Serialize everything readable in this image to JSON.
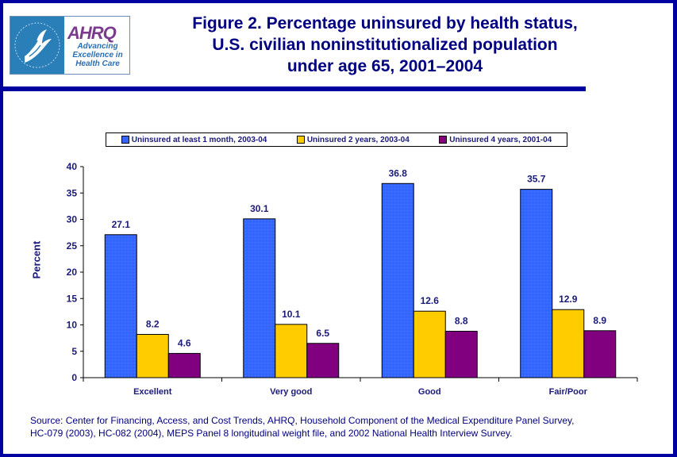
{
  "header": {
    "logo": {
      "org_name": "AHRQ",
      "tagline": [
        "Advancing",
        "Excellence in",
        "Health Care"
      ],
      "seal_icon": "hhs-eagle-seal-icon"
    },
    "title_lines": [
      "Figure 2. Percentage uninsured by health status,",
      "U.S. civilian noninstitutionalized population",
      "under age 65, 2001–2004"
    ]
  },
  "colors": {
    "border": "#0000A0",
    "text": "#000080",
    "series_1": "#3366FF",
    "series_2": "#FFCC00",
    "series_3": "#800080"
  },
  "chart_data": {
    "type": "bar",
    "title": "Figure 2. Percentage uninsured by health status, U.S. civilian noninstitutionalized population under age 65, 2001–2004",
    "xlabel": "",
    "ylabel": "Percent",
    "ylim": [
      0,
      40
    ],
    "yticks": [
      0,
      5,
      10,
      15,
      20,
      25,
      30,
      35,
      40
    ],
    "grid": false,
    "legend_position": "top",
    "categories": [
      "Excellent",
      "Very good",
      "Good",
      "Fair/Poor"
    ],
    "series": [
      {
        "name": "Uninsured at least 1 month, 2003-04",
        "color": "#3366FF",
        "values": [
          27.1,
          30.1,
          36.8,
          35.7
        ]
      },
      {
        "name": "Uninsured 2 years, 2003-04",
        "color": "#FFCC00",
        "values": [
          8.2,
          10.1,
          12.6,
          12.9
        ]
      },
      {
        "name": "Uninsured 4 years, 2001-04",
        "color": "#800080",
        "values": [
          4.6,
          6.5,
          8.8,
          8.9
        ]
      }
    ],
    "data_labels": true
  },
  "footer": {
    "source_lines": [
      "Source: Center for Financing, Access, and Cost Trends, AHRQ, Household Component of the Medical Expenditure Panel Survey,",
      "HC-079 (2003), HC-082 (2004), MEPS Panel 8 longitudinal weight file, and 2002 National Health Interview Survey."
    ]
  }
}
